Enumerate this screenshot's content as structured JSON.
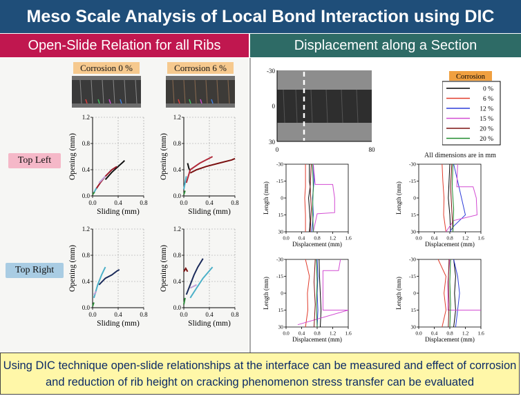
{
  "title": "Meso Scale Analysis of Local Bond Interaction using DIC",
  "left_banner": "Open-Slide Relation for all Ribs",
  "right_banner": "Displacement along a Section",
  "corrosion_labels": [
    "Corrosion 0 %",
    "Corrosion 6 %"
  ],
  "row_labels": [
    "Top Left",
    "Top Right"
  ],
  "footer": "Using DIC technique open-slide relationships at the interface can be measured and effect of corrosion and reduction of rib height on cracking phenomenon stress transfer can be evaluated",
  "dims_note": "All dimensions are in mm",
  "colors": {
    "title_bar": "#1f4e79",
    "left_banner": "#c0174f",
    "right_banner": "#2e6b66",
    "label_orange": "#f6c98e",
    "label_pink": "#f5b8c8",
    "label_blue": "#a9cce3",
    "footer_bg": "#fff7a8"
  },
  "specimen_image": {
    "axis_left_ticks": [
      "-30",
      "0",
      "30"
    ],
    "axis_bottom_ticks": [
      "0",
      "80"
    ]
  },
  "legend": {
    "title": "Corrosion",
    "entries": [
      {
        "label": "0 %",
        "color": "#000000"
      },
      {
        "label": "6 %",
        "color": "#e03a2a"
      },
      {
        "label": "12 %",
        "color": "#2b3bd8"
      },
      {
        "label": "15 %",
        "color": "#d24ad2"
      },
      {
        "label": "20 %",
        "color": "#7a1010"
      },
      {
        "label": "20 %",
        "color": "#1f8a2c"
      }
    ]
  },
  "chart_data": [
    {
      "type": "line",
      "panel": "Top Left, Corrosion 0 %",
      "xlabel": "Sliding (mm)",
      "ylabel": "Opening (mm)",
      "xlim": [
        0,
        0.8
      ],
      "ylim": [
        0,
        1.2
      ],
      "xticks": [
        "0.0",
        "0.4",
        "0.8"
      ],
      "yticks": [
        "0.0",
        "0.4",
        "0.8",
        "1.2"
      ],
      "series": [
        {
          "color": "#111111",
          "x": [
            0.2,
            0.3,
            0.4,
            0.48,
            0.5
          ],
          "y": [
            0.25,
            0.36,
            0.45,
            0.52,
            0.54
          ]
        },
        {
          "color": "#9c1b2b",
          "x": [
            0.05,
            0.12,
            0.2,
            0.3,
            0.38
          ],
          "y": [
            0.1,
            0.2,
            0.3,
            0.4,
            0.45
          ]
        },
        {
          "color": "#c0a0d8",
          "x": [
            0.1,
            0.2
          ],
          "y": [
            0.2,
            0.3
          ]
        },
        {
          "color": "#4bb0c8",
          "x": [
            0.02,
            0.06
          ],
          "y": [
            0.05,
            0.12
          ]
        },
        {
          "color": "#2e8b3b",
          "x": [
            0.0,
            0.03
          ],
          "y": [
            0.02,
            0.06
          ]
        }
      ]
    },
    {
      "type": "line",
      "panel": "Top Left, Corrosion 6 %",
      "xlabel": "Sliding (mm)",
      "ylabel": "Opening (mm)",
      "xlim": [
        0,
        0.8
      ],
      "ylim": [
        0,
        1.2
      ],
      "xticks": [
        "0.0",
        "0.4",
        "0.8"
      ],
      "yticks": [
        "0.0",
        "0.4",
        "0.8",
        "1.2"
      ],
      "series": [
        {
          "color": "#111111",
          "x": [
            0.06,
            0.08,
            0.1
          ],
          "y": [
            0.5,
            0.42,
            0.38
          ]
        },
        {
          "color": "#7a1010",
          "x": [
            0.1,
            0.2,
            0.35,
            0.55,
            0.75,
            0.8
          ],
          "y": [
            0.35,
            0.4,
            0.45,
            0.5,
            0.55,
            0.57
          ]
        },
        {
          "color": "#b02a3a",
          "x": [
            0.04,
            0.1,
            0.25,
            0.45
          ],
          "y": [
            0.2,
            0.4,
            0.5,
            0.6
          ]
        },
        {
          "color": "#4bb0c8",
          "x": [
            0.0,
            0.04
          ],
          "y": [
            0.1,
            0.3
          ]
        },
        {
          "color": "#2e8b3b",
          "x": [
            0.0,
            0.02
          ],
          "y": [
            0.02,
            0.08
          ]
        }
      ]
    },
    {
      "type": "line",
      "panel": "Top Right, Corrosion 0 %",
      "xlabel": "Sliding (mm)",
      "ylabel": "Opening (mm)",
      "xlim": [
        0,
        0.8
      ],
      "ylim": [
        0,
        1.2
      ],
      "xticks": [
        "0.0",
        "0.4",
        "0.8"
      ],
      "yticks": [
        "0.0",
        "0.4",
        "0.8",
        "1.2"
      ],
      "series": [
        {
          "color": "#1a2a5a",
          "x": [
            0.1,
            0.2,
            0.3,
            0.38,
            0.42
          ],
          "y": [
            0.35,
            0.45,
            0.5,
            0.56,
            0.58
          ]
        },
        {
          "color": "#4bb0c8",
          "x": [
            0.02,
            0.08,
            0.14,
            0.2
          ],
          "y": [
            0.15,
            0.35,
            0.5,
            0.62
          ]
        },
        {
          "color": "#c0a0d8",
          "x": [
            0.02,
            0.06
          ],
          "y": [
            0.2,
            0.25
          ]
        },
        {
          "color": "#2e8b3b",
          "x": [
            0.0,
            0.02
          ],
          "y": [
            0.02,
            0.08
          ]
        }
      ]
    },
    {
      "type": "line",
      "panel": "Top Right, Corrosion 6 %",
      "xlabel": "Sliding (mm)",
      "ylabel": "Opening (mm)",
      "xlim": [
        0,
        0.8
      ],
      "ylim": [
        0,
        1.2
      ],
      "xticks": [
        "0.0",
        "0.4",
        "0.8"
      ],
      "yticks": [
        "0.0",
        "0.4",
        "0.8",
        "1.2"
      ],
      "series": [
        {
          "color": "#1a2a5a",
          "x": [
            0.04,
            0.1,
            0.16,
            0.22,
            0.3
          ],
          "y": [
            0.2,
            0.35,
            0.5,
            0.62,
            0.75
          ]
        },
        {
          "color": "#4bb0c8",
          "x": [
            0.1,
            0.2,
            0.3,
            0.45
          ],
          "y": [
            0.15,
            0.3,
            0.45,
            0.62
          ]
        },
        {
          "color": "#7a1010",
          "x": [
            0.0,
            0.03,
            0.06
          ],
          "y": [
            0.55,
            0.6,
            0.55
          ]
        },
        {
          "color": "#c0a0d8",
          "x": [
            0.1,
            0.2
          ],
          "y": [
            0.3,
            0.35
          ]
        },
        {
          "color": "#2e8b3b",
          "x": [
            0.0,
            0.02
          ],
          "y": [
            0.05,
            0.15
          ]
        }
      ]
    },
    {
      "type": "line",
      "panel": "Displacement section 1",
      "xlabel": "Displacement (mm)",
      "ylabel": "Length (mm)",
      "xlim": [
        0,
        1.6
      ],
      "ylim": [
        -30,
        30
      ],
      "xticks": [
        "0.0",
        "0.4",
        "0.8",
        "1.2",
        "1.6"
      ],
      "yticks": [
        "-30",
        "-15",
        "0",
        "15",
        "30"
      ],
      "series": [
        {
          "color": "#000000",
          "x": [
            0.6,
            0.6,
            0.62,
            0.58,
            0.6,
            0.62,
            0.6
          ],
          "y": [
            -30,
            -15,
            -10,
            0,
            10,
            20,
            30
          ]
        },
        {
          "color": "#e03a2a",
          "x": [
            0.5,
            0.5,
            0.48,
            0.5,
            0.5
          ],
          "y": [
            -30,
            -10,
            0,
            15,
            30
          ]
        },
        {
          "color": "#2b3bd8",
          "x": [
            0.7,
            0.72,
            0.68,
            0.7,
            0.66
          ],
          "y": [
            -30,
            -15,
            0,
            15,
            30
          ]
        },
        {
          "color": "#d24ad2",
          "x": [
            0.7,
            0.75,
            1.2,
            1.25,
            1.25,
            0.8,
            0.7
          ],
          "y": [
            -30,
            -12,
            -12,
            0,
            13,
            14,
            30
          ]
        },
        {
          "color": "#7a1010",
          "x": [
            0.65,
            0.62,
            0.65,
            0.62
          ],
          "y": [
            -30,
            -10,
            10,
            30
          ]
        },
        {
          "color": "#1f8a2c",
          "x": [
            0.68,
            0.7,
            0.68,
            0.7
          ],
          "y": [
            -30,
            -10,
            10,
            30
          ]
        }
      ]
    },
    {
      "type": "line",
      "panel": "Displacement section 2",
      "xlabel": "Displacement (mm)",
      "ylabel": "Length (mm)",
      "xlim": [
        0,
        1.6
      ],
      "ylim": [
        -30,
        30
      ],
      "xticks": [
        "0.0",
        "0.4",
        "0.8",
        "1.2",
        "1.6"
      ],
      "yticks": [
        "-30",
        "-15",
        "0",
        "15",
        "30"
      ],
      "series": [
        {
          "color": "#000000",
          "x": [
            0.8,
            0.78,
            0.76,
            0.8,
            0.82
          ],
          "y": [
            -30,
            -15,
            0,
            15,
            30
          ]
        },
        {
          "color": "#e03a2a",
          "x": [
            0.6,
            0.62,
            0.65,
            0.64,
            0.7
          ],
          "y": [
            -30,
            -15,
            0,
            15,
            30
          ]
        },
        {
          "color": "#2b3bd8",
          "x": [
            0.9,
            1.0,
            1.1,
            1.2,
            0.9,
            0.8
          ],
          "y": [
            -30,
            -15,
            0,
            15,
            25,
            30
          ]
        },
        {
          "color": "#d24ad2",
          "x": [
            1.0,
            0.98,
            1.4,
            1.48,
            1.5,
            0.9,
            0.7
          ],
          "y": [
            -30,
            -10,
            -10,
            0,
            15,
            20,
            30
          ]
        },
        {
          "color": "#7a1010",
          "x": [
            0.85,
            0.82,
            0.85,
            0.88
          ],
          "y": [
            -30,
            -10,
            10,
            30
          ]
        },
        {
          "color": "#1f8a2c",
          "x": [
            0.88,
            0.86,
            0.9,
            0.88
          ],
          "y": [
            -30,
            -10,
            10,
            30
          ]
        }
      ]
    },
    {
      "type": "line",
      "panel": "Displacement section 3",
      "xlabel": "Displacement (mm)",
      "ylabel": "Length (mm)",
      "xlim": [
        0,
        1.6
      ],
      "ylim": [
        -30,
        30
      ],
      "xticks": [
        "0.0",
        "0.4",
        "0.8",
        "1.2",
        "1.6"
      ],
      "yticks": [
        "-30",
        "-15",
        "0",
        "15",
        "30"
      ],
      "series": [
        {
          "color": "#000000",
          "x": [
            0.85,
            0.86,
            0.88,
            0.9,
            0.88
          ],
          "y": [
            -30,
            -15,
            0,
            15,
            30
          ]
        },
        {
          "color": "#e03a2a",
          "x": [
            0.5,
            0.6,
            0.55,
            0.56,
            0.5
          ],
          "y": [
            -30,
            -15,
            0,
            15,
            30
          ]
        },
        {
          "color": "#2b3bd8",
          "x": [
            0.8,
            0.82,
            0.8,
            0.82,
            0.8
          ],
          "y": [
            -30,
            -15,
            0,
            15,
            30
          ]
        },
        {
          "color": "#d24ad2",
          "x": [
            1.4,
            1.35,
            0.95,
            0.95,
            1.6,
            0.3
          ],
          "y": [
            -30,
            -20,
            -20,
            15,
            15,
            28
          ]
        },
        {
          "color": "#7a1010",
          "x": [
            0.75,
            0.72,
            0.75,
            0.72
          ],
          "y": [
            -30,
            -10,
            10,
            30
          ]
        },
        {
          "color": "#1f8a2c",
          "x": [
            0.78,
            0.8,
            0.78,
            0.8
          ],
          "y": [
            -30,
            -10,
            10,
            30
          ]
        }
      ]
    },
    {
      "type": "line",
      "panel": "Displacement section 4",
      "xlabel": "Displacement (mm)",
      "ylabel": "Length (mm)",
      "xlim": [
        0,
        1.6
      ],
      "ylim": [
        -30,
        30
      ],
      "xticks": [
        "0.0",
        "0.4",
        "0.8",
        "1.2",
        "1.6"
      ],
      "yticks": [
        "-30",
        "-15",
        "0",
        "15",
        "30"
      ],
      "series": [
        {
          "color": "#000000",
          "x": [
            0.9,
            0.95,
            0.92,
            0.95,
            0.9
          ],
          "y": [
            -30,
            -15,
            0,
            15,
            30
          ]
        },
        {
          "color": "#e03a2a",
          "x": [
            0.5,
            0.7,
            0.65,
            0.7,
            0.6
          ],
          "y": [
            -30,
            -15,
            0,
            15,
            30
          ]
        },
        {
          "color": "#2b3bd8",
          "x": [
            0.9,
            1.0,
            1.05,
            1.0,
            0.95
          ],
          "y": [
            -30,
            -15,
            0,
            15,
            30
          ]
        },
        {
          "color": "#d24ad2",
          "x": [
            0.8,
            0.75,
            0.75,
            0.85,
            1.6
          ],
          "y": [
            -30,
            -10,
            15,
            15,
            15
          ]
        },
        {
          "color": "#7a1010",
          "x": [
            0.78,
            0.76,
            0.78,
            0.76
          ],
          "y": [
            -30,
            -10,
            10,
            30
          ]
        },
        {
          "color": "#1f8a2c",
          "x": [
            0.82,
            0.8,
            0.82,
            0.8
          ],
          "y": [
            -30,
            -10,
            10,
            30
          ]
        }
      ]
    }
  ]
}
